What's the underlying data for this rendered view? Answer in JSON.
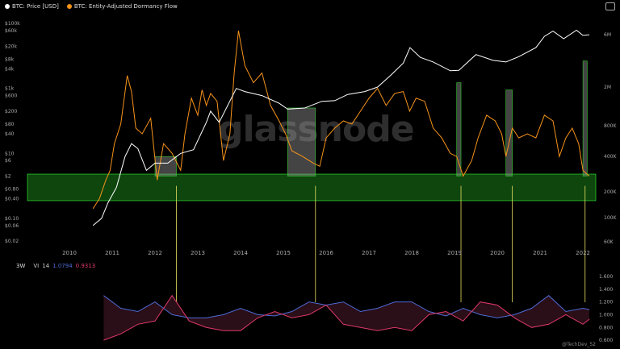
{
  "legend": [
    {
      "label": "BTC: Price [USD]",
      "color": "#ffffff"
    },
    {
      "label": "BTC: Entity-Adjusted Dormancy Flow",
      "color": "#f7931a"
    }
  ],
  "watermark": "glassnode",
  "credit": "@TechDev_52",
  "indicator": {
    "timeframe": "3W",
    "name": "VI",
    "period": "14",
    "vi_plus": "1.0794",
    "vi_minus": "0.9313"
  },
  "chart_data": [
    {
      "type": "line",
      "title": "",
      "x_ticks": [
        "2010",
        "2011",
        "2012",
        "2013",
        "2014",
        "2015",
        "2016",
        "2017",
        "2018",
        "2019",
        "2020",
        "2021",
        "2022"
      ],
      "y_left_ticks": [
        "$100k",
        "$60k",
        "$20k",
        "$8k",
        "$4k",
        "$1k",
        "$600",
        "$200",
        "$80",
        "$40",
        "$10",
        "$6",
        "$2",
        "$0.80",
        "$0.40",
        "$0.10",
        "$0.06",
        "$0.02"
      ],
      "y_right_ticks": [
        "6M",
        "2M",
        "800K",
        "400K",
        "200K",
        "100K",
        "60K"
      ],
      "log_scale": true,
      "series": [
        {
          "name": "BTC: Price [USD]",
          "color": "#ffffff",
          "x": [
            2010.55,
            2010.75,
            2010.9,
            2011.1,
            2011.3,
            2011.45,
            2011.6,
            2011.8,
            2012.0,
            2012.3,
            2012.6,
            2012.9,
            2013.2,
            2013.3,
            2013.5,
            2013.9,
            2014.1,
            2014.5,
            2014.9,
            2015.1,
            2015.5,
            2015.9,
            2016.2,
            2016.5,
            2016.9,
            2017.2,
            2017.5,
            2017.8,
            2017.96,
            2018.2,
            2018.5,
            2018.9,
            2019.1,
            2019.5,
            2019.9,
            2020.2,
            2020.5,
            2020.9,
            2021.1,
            2021.3,
            2021.55,
            2021.85,
            2022.0,
            2022.15
          ],
          "y": [
            0.06,
            0.1,
            0.3,
            0.9,
            8,
            20,
            14,
            3,
            5,
            5,
            10,
            13,
            90,
            200,
            90,
            1000,
            800,
            600,
            350,
            230,
            250,
            400,
            420,
            650,
            800,
            1100,
            2500,
            6000,
            18000,
            9000,
            6500,
            3500,
            3600,
            11000,
            7300,
            6500,
            9500,
            18000,
            40000,
            58000,
            34000,
            62000,
            43000,
            45000
          ]
        },
        {
          "name": "BTC: Entity-Adjusted Dormancy Flow",
          "color": "#f7931a",
          "x": [
            2010.55,
            2010.7,
            2010.85,
            2010.95,
            2011.05,
            2011.2,
            2011.35,
            2011.45,
            2011.55,
            2011.7,
            2011.9,
            2012.05,
            2012.2,
            2012.4,
            2012.6,
            2012.7,
            2012.85,
            2013.0,
            2013.1,
            2013.2,
            2013.3,
            2013.45,
            2013.6,
            2013.75,
            2013.85,
            2013.95,
            2014.1,
            2014.3,
            2014.5,
            2014.7,
            2014.9,
            2015.05,
            2015.2,
            2015.45,
            2015.7,
            2015.85,
            2016.0,
            2016.2,
            2016.4,
            2016.6,
            2016.8,
            2017.0,
            2017.2,
            2017.4,
            2017.6,
            2017.8,
            2017.95,
            2018.1,
            2018.3,
            2018.5,
            2018.7,
            2018.9,
            2019.05,
            2019.2,
            2019.4,
            2019.55,
            2019.75,
            2019.95,
            2020.1,
            2020.2,
            2020.35,
            2020.5,
            2020.7,
            2020.9,
            2021.1,
            2021.3,
            2021.45,
            2021.6,
            2021.75,
            2021.9,
            2022.0,
            2022.15
          ],
          "y": [
            0.2,
            0.4,
            1.5,
            3,
            20,
            80,
            2500,
            800,
            60,
            40,
            120,
            1.5,
            20,
            10,
            3,
            40,
            500,
            150,
            900,
            300,
            700,
            400,
            6,
            40,
            3000,
            60000,
            5000,
            1500,
            3000,
            300,
            100,
            40,
            12,
            8,
            5,
            4,
            30,
            60,
            100,
            80,
            200,
            500,
            1000,
            300,
            700,
            800,
            200,
            500,
            400,
            60,
            30,
            10,
            8,
            2,
            6,
            30,
            150,
            100,
            40,
            8,
            60,
            30,
            40,
            30,
            150,
            100,
            8,
            30,
            60,
            20,
            3,
            2
          ]
        }
      ]
    },
    {
      "type": "line",
      "title": "",
      "y_ticks": [
        "1.600",
        "1.400",
        "1.200",
        "1.000",
        "0.800",
        "0.600"
      ],
      "series": [
        {
          "name": "VI+",
          "color": "#4d6bd6",
          "x": [
            2010.8,
            2011.2,
            2011.6,
            2012.0,
            2012.4,
            2012.8,
            2013.2,
            2013.6,
            2014.0,
            2014.4,
            2014.8,
            2015.2,
            2015.6,
            2016.0,
            2016.4,
            2016.8,
            2017.2,
            2017.6,
            2018.0,
            2018.4,
            2018.8,
            2019.2,
            2019.6,
            2020.0,
            2020.4,
            2020.8,
            2021.2,
            2021.6,
            2022.0,
            2022.15
          ],
          "y": [
            1.3,
            1.1,
            1.05,
            1.2,
            1.0,
            0.95,
            0.95,
            1.0,
            1.1,
            1.0,
            0.98,
            1.05,
            1.2,
            1.15,
            1.2,
            1.05,
            1.1,
            1.2,
            1.2,
            1.05,
            0.98,
            1.1,
            1.0,
            0.95,
            1.0,
            1.1,
            1.3,
            1.05,
            1.1,
            1.08
          ]
        },
        {
          "name": "VI-",
          "color": "#e03a6a",
          "x": [
            2010.8,
            2011.2,
            2011.6,
            2012.0,
            2012.4,
            2012.8,
            2013.2,
            2013.6,
            2014.0,
            2014.4,
            2014.8,
            2015.2,
            2015.6,
            2016.0,
            2016.4,
            2016.8,
            2017.2,
            2017.6,
            2018.0,
            2018.4,
            2018.8,
            2019.2,
            2019.6,
            2020.0,
            2020.4,
            2020.8,
            2021.2,
            2021.6,
            2022.0,
            2022.15
          ],
          "y": [
            0.6,
            0.7,
            0.85,
            0.9,
            1.3,
            0.9,
            0.8,
            0.75,
            0.75,
            0.95,
            1.05,
            0.95,
            1.0,
            1.15,
            0.85,
            0.8,
            0.75,
            0.8,
            0.75,
            1.0,
            1.05,
            0.9,
            1.2,
            1.15,
            0.95,
            0.8,
            0.85,
            1.0,
            0.85,
            0.93
          ]
        }
      ]
    }
  ]
}
